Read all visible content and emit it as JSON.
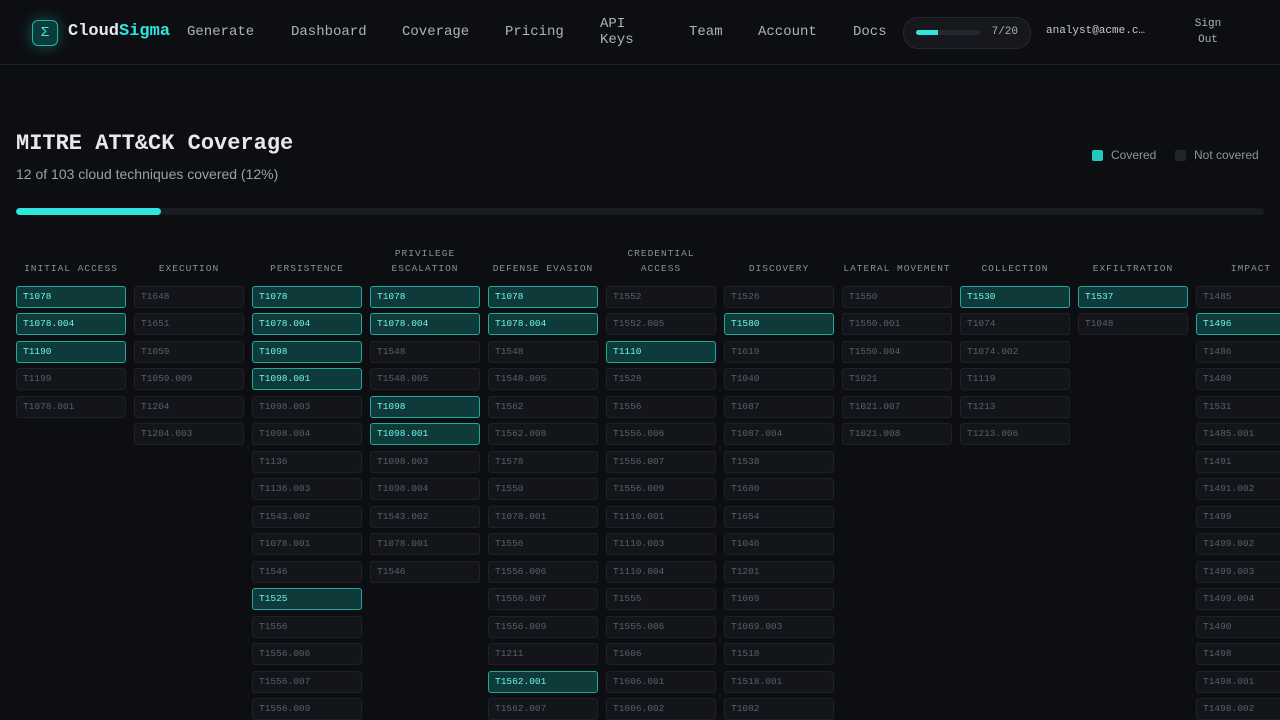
{
  "nav": {
    "logo": "Σ",
    "brand": {
      "first": "Cloud",
      "second": "Sigma"
    },
    "links": [
      "Generate",
      "Dashboard",
      "Coverage",
      "Pricing",
      "API Keys",
      "Team",
      "Account",
      "Docs"
    ],
    "usage": {
      "label": "7/20",
      "used": 7,
      "limit": 20
    },
    "email": "analyst@acme.c…",
    "sign_out": "Sign Out"
  },
  "header": {
    "title": "MITRE ATT&CK Coverage",
    "subtitle": "12 of 103 cloud techniques covered (12%)",
    "covered": 12,
    "total": 103
  },
  "legend": [
    "Covered",
    "Not covered"
  ],
  "tactics": [
    {
      "name": "INITIAL ACCESS",
      "techniques": [
        {
          "id": "T1078",
          "covered": true
        },
        {
          "id": "T1078.004",
          "covered": true
        },
        {
          "id": "T1190",
          "covered": true
        },
        {
          "id": "T1199",
          "covered": false
        },
        {
          "id": "T1078.001",
          "covered": false
        }
      ]
    },
    {
      "name": "EXECUTION",
      "techniques": [
        {
          "id": "T1648",
          "covered": false
        },
        {
          "id": "T1651",
          "covered": false
        },
        {
          "id": "T1059",
          "covered": false
        },
        {
          "id": "T1059.009",
          "covered": false
        },
        {
          "id": "T1204",
          "covered": false
        },
        {
          "id": "T1204.003",
          "covered": false
        }
      ]
    },
    {
      "name": "PERSISTENCE",
      "techniques": [
        {
          "id": "T1078",
          "covered": true
        },
        {
          "id": "T1078.004",
          "covered": true
        },
        {
          "id": "T1098",
          "covered": true
        },
        {
          "id": "T1098.001",
          "covered": true
        },
        {
          "id": "T1098.003",
          "covered": false
        },
        {
          "id": "T1098.004",
          "covered": false
        },
        {
          "id": "T1136",
          "covered": false
        },
        {
          "id": "T1136.003",
          "covered": false
        },
        {
          "id": "T1543.002",
          "covered": false
        },
        {
          "id": "T1078.001",
          "covered": false
        },
        {
          "id": "T1546",
          "covered": false
        },
        {
          "id": "T1525",
          "covered": true
        },
        {
          "id": "T1556",
          "covered": false
        },
        {
          "id": "T1556.006",
          "covered": false
        },
        {
          "id": "T1556.007",
          "covered": false
        },
        {
          "id": "T1556.009",
          "covered": false
        }
      ]
    },
    {
      "name": "PRIVILEGE ESCALATION",
      "techniques": [
        {
          "id": "T1078",
          "covered": true
        },
        {
          "id": "T1078.004",
          "covered": true
        },
        {
          "id": "T1548",
          "covered": false
        },
        {
          "id": "T1548.005",
          "covered": false
        },
        {
          "id": "T1098",
          "covered": true
        },
        {
          "id": "T1098.001",
          "covered": true
        },
        {
          "id": "T1098.003",
          "covered": false
        },
        {
          "id": "T1098.004",
          "covered": false
        },
        {
          "id": "T1543.002",
          "covered": false
        },
        {
          "id": "T1078.001",
          "covered": false
        },
        {
          "id": "T1546",
          "covered": false
        }
      ]
    },
    {
      "name": "DEFENSE EVASION",
      "techniques": [
        {
          "id": "T1078",
          "covered": true
        },
        {
          "id": "T1078.004",
          "covered": true
        },
        {
          "id": "T1548",
          "covered": false
        },
        {
          "id": "T1548.005",
          "covered": false
        },
        {
          "id": "T1562",
          "covered": false
        },
        {
          "id": "T1562.008",
          "covered": false
        },
        {
          "id": "T1578",
          "covered": false
        },
        {
          "id": "T1550",
          "covered": false
        },
        {
          "id": "T1078.001",
          "covered": false
        },
        {
          "id": "T1556",
          "covered": false
        },
        {
          "id": "T1556.006",
          "covered": false
        },
        {
          "id": "T1556.007",
          "covered": false
        },
        {
          "id": "T1556.009",
          "covered": false
        },
        {
          "id": "T1211",
          "covered": false
        },
        {
          "id": "T1562.001",
          "covered": true
        },
        {
          "id": "T1562.007",
          "covered": false
        }
      ]
    },
    {
      "name": "CREDENTIAL ACCESS",
      "techniques": [
        {
          "id": "T1552",
          "covered": false
        },
        {
          "id": "T1552.005",
          "covered": false
        },
        {
          "id": "T1110",
          "covered": true
        },
        {
          "id": "T1528",
          "covered": false
        },
        {
          "id": "T1556",
          "covered": false
        },
        {
          "id": "T1556.006",
          "covered": false
        },
        {
          "id": "T1556.007",
          "covered": false
        },
        {
          "id": "T1556.009",
          "covered": false
        },
        {
          "id": "T1110.001",
          "covered": false
        },
        {
          "id": "T1110.003",
          "covered": false
        },
        {
          "id": "T1110.004",
          "covered": false
        },
        {
          "id": "T1555",
          "covered": false
        },
        {
          "id": "T1555.006",
          "covered": false
        },
        {
          "id": "T1606",
          "covered": false
        },
        {
          "id": "T1606.001",
          "covered": false
        },
        {
          "id": "T1606.002",
          "covered": false
        }
      ]
    },
    {
      "name": "DISCOVERY",
      "techniques": [
        {
          "id": "T1526",
          "covered": false
        },
        {
          "id": "T1580",
          "covered": true
        },
        {
          "id": "T1619",
          "covered": false
        },
        {
          "id": "T1040",
          "covered": false
        },
        {
          "id": "T1087",
          "covered": false
        },
        {
          "id": "T1087.004",
          "covered": false
        },
        {
          "id": "T1538",
          "covered": false
        },
        {
          "id": "T1680",
          "covered": false
        },
        {
          "id": "T1654",
          "covered": false
        },
        {
          "id": "T1046",
          "covered": false
        },
        {
          "id": "T1201",
          "covered": false
        },
        {
          "id": "T1069",
          "covered": false
        },
        {
          "id": "T1069.003",
          "covered": false
        },
        {
          "id": "T1518",
          "covered": false
        },
        {
          "id": "T1518.001",
          "covered": false
        },
        {
          "id": "T1082",
          "covered": false
        }
      ]
    },
    {
      "name": "LATERAL MOVEMENT",
      "techniques": [
        {
          "id": "T1550",
          "covered": false
        },
        {
          "id": "T1550.001",
          "covered": false
        },
        {
          "id": "T1550.004",
          "covered": false
        },
        {
          "id": "T1021",
          "covered": false
        },
        {
          "id": "T1021.007",
          "covered": false
        },
        {
          "id": "T1021.008",
          "covered": false
        }
      ]
    },
    {
      "name": "COLLECTION",
      "techniques": [
        {
          "id": "T1530",
          "covered": true
        },
        {
          "id": "T1074",
          "covered": false
        },
        {
          "id": "T1074.002",
          "covered": false
        },
        {
          "id": "T1119",
          "covered": false
        },
        {
          "id": "T1213",
          "covered": false
        },
        {
          "id": "T1213.006",
          "covered": false
        }
      ]
    },
    {
      "name": "EXFILTRATION",
      "techniques": [
        {
          "id": "T1537",
          "covered": true
        },
        {
          "id": "T1048",
          "covered": false
        }
      ]
    },
    {
      "name": "IMPACT",
      "techniques": [
        {
          "id": "T1485",
          "covered": false
        },
        {
          "id": "T1496",
          "covered": true
        },
        {
          "id": "T1486",
          "covered": false
        },
        {
          "id": "T1489",
          "covered": false
        },
        {
          "id": "T1531",
          "covered": false
        },
        {
          "id": "T1485.001",
          "covered": false
        },
        {
          "id": "T1491",
          "covered": false
        },
        {
          "id": "T1491.002",
          "covered": false
        },
        {
          "id": "T1499",
          "covered": false
        },
        {
          "id": "T1499.002",
          "covered": false
        },
        {
          "id": "T1499.003",
          "covered": false
        },
        {
          "id": "T1499.004",
          "covered": false
        },
        {
          "id": "T1490",
          "covered": false
        },
        {
          "id": "T1498",
          "covered": false
        },
        {
          "id": "T1498.001",
          "covered": false
        },
        {
          "id": "T1498.002",
          "covered": false
        }
      ]
    }
  ]
}
